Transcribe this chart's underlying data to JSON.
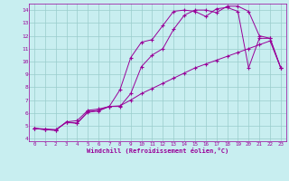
{
  "xlabel": "Windchill (Refroidissement éolien,°C)",
  "bg_color": "#c8eef0",
  "line_color": "#990099",
  "grid_color": "#99cccc",
  "xlim": [
    -0.5,
    23.5
  ],
  "ylim": [
    3.8,
    14.5
  ],
  "xticks": [
    0,
    1,
    2,
    3,
    4,
    5,
    6,
    7,
    8,
    9,
    10,
    11,
    12,
    13,
    14,
    15,
    16,
    17,
    18,
    19,
    20,
    21,
    22,
    23
  ],
  "yticks": [
    4,
    5,
    6,
    7,
    8,
    9,
    10,
    11,
    12,
    13,
    14
  ],
  "line1_x": [
    0,
    1,
    2,
    3,
    4,
    5,
    6,
    7,
    8,
    9,
    10,
    11,
    12,
    13,
    14,
    15,
    16,
    17,
    18,
    19,
    20,
    21,
    22,
    23
  ],
  "line1_y": [
    4.8,
    4.7,
    4.65,
    5.3,
    5.2,
    6.1,
    6.2,
    6.5,
    7.8,
    10.3,
    11.5,
    11.7,
    12.8,
    13.9,
    14.0,
    13.9,
    13.5,
    14.1,
    14.2,
    13.9,
    9.5,
    11.8,
    11.8,
    9.5
  ],
  "line2_x": [
    0,
    1,
    2,
    3,
    4,
    5,
    6,
    7,
    8,
    9,
    10,
    11,
    12,
    13,
    14,
    15,
    16,
    17,
    18,
    19,
    20,
    21,
    22,
    23
  ],
  "line2_y": [
    4.8,
    4.7,
    4.65,
    5.3,
    5.4,
    6.2,
    6.3,
    6.5,
    6.5,
    7.5,
    9.6,
    10.5,
    11.0,
    12.5,
    13.6,
    14.0,
    14.0,
    13.8,
    14.3,
    14.3,
    13.9,
    12.0,
    11.8,
    9.5
  ],
  "line3_x": [
    0,
    1,
    2,
    3,
    4,
    5,
    6,
    7,
    8,
    9,
    10,
    11,
    12,
    13,
    14,
    15,
    16,
    17,
    18,
    19,
    20,
    21,
    22,
    23
  ],
  "line3_y": [
    4.8,
    4.75,
    4.7,
    5.25,
    5.2,
    6.05,
    6.15,
    6.5,
    6.55,
    7.0,
    7.5,
    7.9,
    8.3,
    8.7,
    9.1,
    9.5,
    9.8,
    10.1,
    10.4,
    10.7,
    11.0,
    11.3,
    11.6,
    9.5
  ]
}
